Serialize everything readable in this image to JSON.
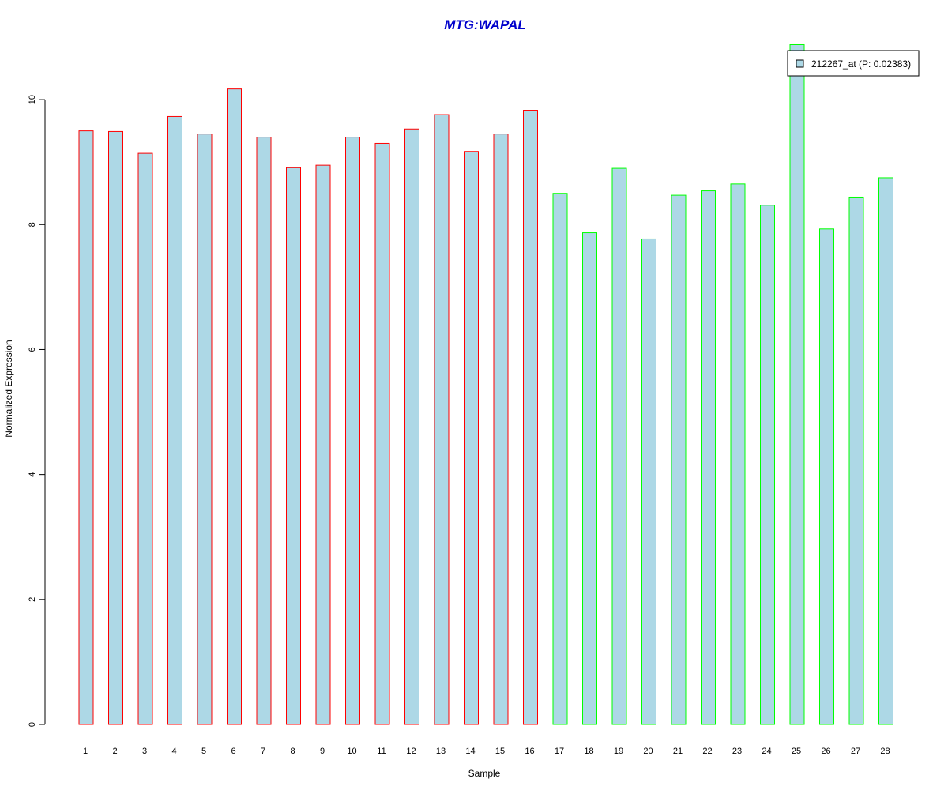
{
  "chart_data": {
    "type": "bar",
    "title": "MTG:WAPAL",
    "xlabel": "Sample",
    "ylabel": "Normalized Expression",
    "ylim": [
      0,
      11
    ],
    "yticks": [
      0,
      2,
      4,
      6,
      8,
      10
    ],
    "grid": false,
    "legend_position": "top-right",
    "categories": [
      "1",
      "2",
      "3",
      "4",
      "5",
      "6",
      "7",
      "8",
      "9",
      "10",
      "11",
      "12",
      "13",
      "14",
      "15",
      "16",
      "17",
      "18",
      "19",
      "20",
      "21",
      "22",
      "23",
      "24",
      "25",
      "26",
      "27",
      "28"
    ],
    "series": [
      {
        "name": "212267_at (P: 0.02383)",
        "values": [
          9.5,
          9.49,
          9.14,
          9.73,
          9.45,
          10.17,
          9.4,
          8.91,
          8.95,
          9.4,
          9.3,
          9.53,
          9.76,
          9.17,
          9.45,
          9.83,
          8.5,
          7.87,
          8.9,
          7.77,
          8.47,
          8.54,
          8.65,
          8.31,
          10.88,
          7.93,
          8.44,
          8.75
        ],
        "fill_color": "#add8e6",
        "border_colors": [
          "#ff0000",
          "#ff0000",
          "#ff0000",
          "#ff0000",
          "#ff0000",
          "#ff0000",
          "#ff0000",
          "#ff0000",
          "#ff0000",
          "#ff0000",
          "#ff0000",
          "#ff0000",
          "#ff0000",
          "#ff0000",
          "#ff0000",
          "#ff0000",
          "#00ff00",
          "#00ff00",
          "#00ff00",
          "#00ff00",
          "#00ff00",
          "#00ff00",
          "#00ff00",
          "#00ff00",
          "#00ff00",
          "#00ff00",
          "#00ff00",
          "#00ff00"
        ]
      }
    ],
    "title_color": "#0000cc"
  }
}
